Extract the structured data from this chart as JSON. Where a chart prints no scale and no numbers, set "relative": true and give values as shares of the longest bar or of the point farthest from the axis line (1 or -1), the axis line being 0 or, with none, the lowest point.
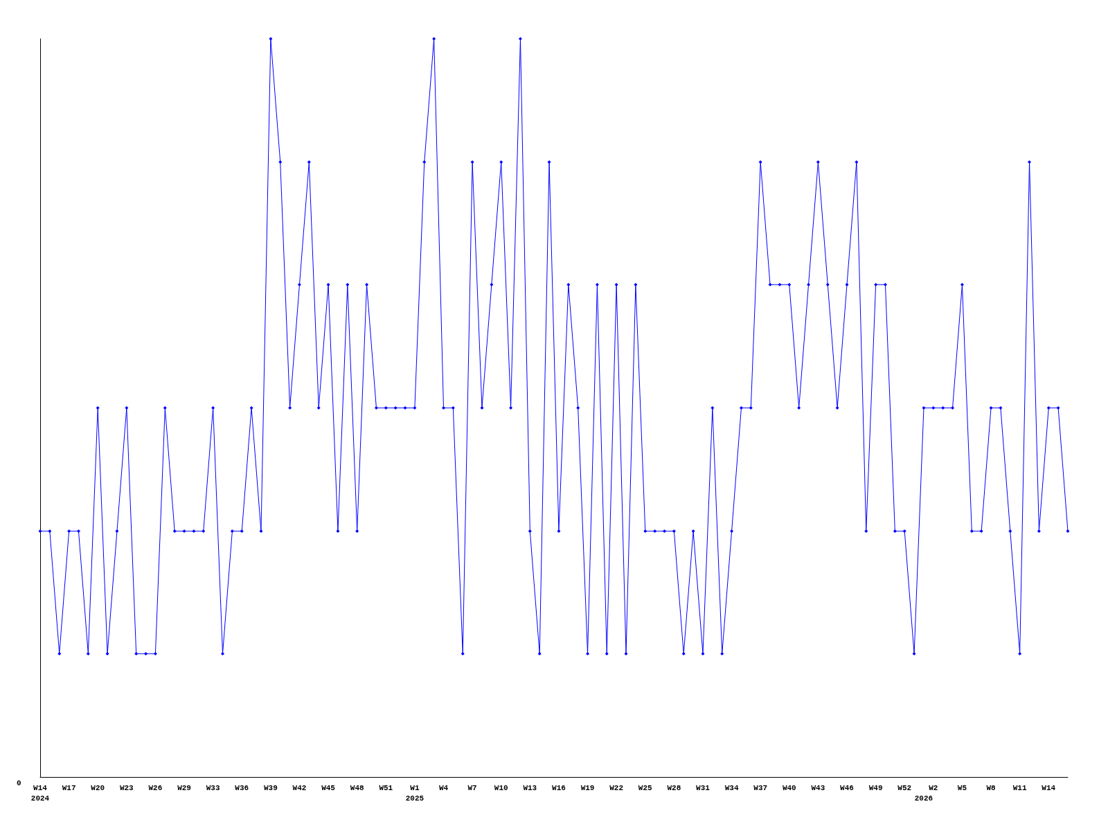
{
  "chart_data": {
    "type": "line",
    "relative": true,
    "color": "#0000ff",
    "marker": "diamond",
    "line_style": "solid",
    "annotations": [
      "0"
    ],
    "categories": [
      "W14\n2024",
      null,
      null,
      "W17",
      null,
      null,
      "W20",
      null,
      null,
      "W23",
      null,
      null,
      "W26",
      null,
      null,
      "W29",
      null,
      null,
      "W33",
      null,
      null,
      "W36",
      null,
      null,
      "W39",
      null,
      null,
      "W42",
      null,
      null,
      "W45",
      null,
      null,
      "W48",
      null,
      null,
      "W51",
      null,
      null,
      "W1\n2025",
      null,
      null,
      "W4",
      null,
      null,
      "W7",
      null,
      null,
      "W10",
      null,
      null,
      "W13",
      null,
      null,
      "W16",
      null,
      null,
      "W19",
      null,
      null,
      "W22",
      null,
      null,
      "W25",
      null,
      null,
      "W28",
      null,
      null,
      "W31",
      null,
      null,
      "W34",
      null,
      null,
      "W37",
      null,
      null,
      "W40",
      null,
      null,
      "W43",
      null,
      null,
      "W46",
      null,
      null,
      "W49",
      null,
      null,
      "W52",
      null,
      "\n2026",
      "W2",
      null,
      null,
      "W5",
      null,
      null,
      "W8",
      null,
      null,
      "W11",
      null,
      null,
      "W14",
      null,
      null
    ],
    "values": [
      0.333,
      0.333,
      0.167,
      0.333,
      0.333,
      0.167,
      0.5,
      0.167,
      0.333,
      0.5,
      0.167,
      0.167,
      0.167,
      0.5,
      0.333,
      0.333,
      0.333,
      0.333,
      0.5,
      0.167,
      0.333,
      0.333,
      0.5,
      0.333,
      1,
      0.833,
      0.5,
      0.667,
      0.833,
      0.5,
      0.667,
      0.333,
      0.667,
      0.333,
      0.667,
      0.5,
      0.5,
      0.5,
      0.5,
      0.5,
      0.833,
      1,
      0.5,
      0.5,
      0.167,
      0.833,
      0.5,
      0.667,
      0.833,
      0.5,
      1,
      0.333,
      0.167,
      0.833,
      0.333,
      0.667,
      0.5,
      0.167,
      0.667,
      0.167,
      0.667,
      0.167,
      0.667,
      0.333,
      0.333,
      0.333,
      0.333,
      0.167,
      0.333,
      0.167,
      0.5,
      0.167,
      0.333,
      0.5,
      0.5,
      0.833,
      0.667,
      0.667,
      0.667,
      0.5,
      0.667,
      0.833,
      0.667,
      0.5,
      0.667,
      0.833,
      0.333,
      0.667,
      0.667,
      0.333,
      0.333,
      0.167,
      0.5,
      0.5,
      0.5,
      0.5,
      0.667,
      0.333,
      0.333,
      0.5,
      0.5,
      0.333,
      0.167,
      0.833,
      0.333,
      0.5,
      0.5,
      0.333
    ]
  }
}
